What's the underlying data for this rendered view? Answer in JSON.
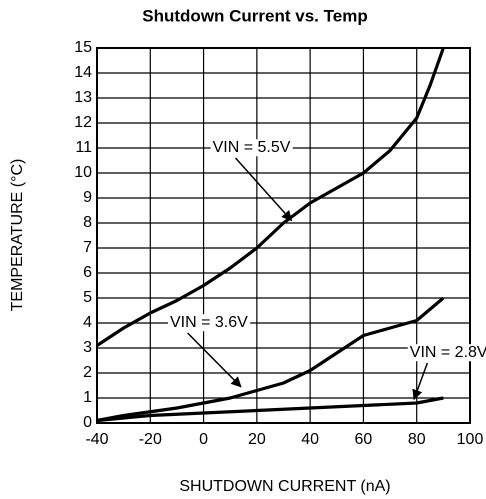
{
  "chart_data": {
    "type": "line",
    "title": "Shutdown Current vs. Temp",
    "xlabel": "SHUTDOWN CURRENT (nA)",
    "ylabel": "TEMPERATURE (°C)",
    "xlim": [
      -40,
      100
    ],
    "ylim": [
      0,
      15
    ],
    "xticks": [
      -40,
      -20,
      0,
      20,
      40,
      60,
      80,
      100
    ],
    "yticks": [
      0,
      1,
      2,
      3,
      4,
      5,
      6,
      7,
      8,
      9,
      10,
      11,
      12,
      13,
      14,
      15
    ],
    "grid": true,
    "series": [
      {
        "name": "VIN = 5.5V",
        "color": "#000000",
        "x": [
          -40,
          -30,
          -20,
          -10,
          0,
          10,
          20,
          30,
          40,
          50,
          60,
          70,
          80,
          85,
          90
        ],
        "values": [
          3.1,
          3.8,
          4.4,
          4.9,
          5.5,
          6.2,
          7.0,
          8.0,
          8.8,
          9.4,
          10.0,
          10.9,
          12.2,
          13.5,
          15.0
        ]
      },
      {
        "name": "VIN = 3.6V",
        "color": "#000000",
        "x": [
          -40,
          -30,
          -20,
          -10,
          0,
          10,
          20,
          30,
          40,
          50,
          60,
          70,
          80,
          90
        ],
        "values": [
          0.1,
          0.3,
          0.45,
          0.6,
          0.8,
          1.0,
          1.3,
          1.6,
          2.1,
          2.8,
          3.5,
          3.8,
          4.1,
          5.0
        ]
      },
      {
        "name": "VIN = 2.8V",
        "color": "#000000",
        "x": [
          -40,
          -20,
          0,
          20,
          40,
          60,
          80,
          90
        ],
        "values": [
          0.1,
          0.3,
          0.4,
          0.5,
          0.6,
          0.7,
          0.8,
          1.0
        ]
      }
    ]
  }
}
